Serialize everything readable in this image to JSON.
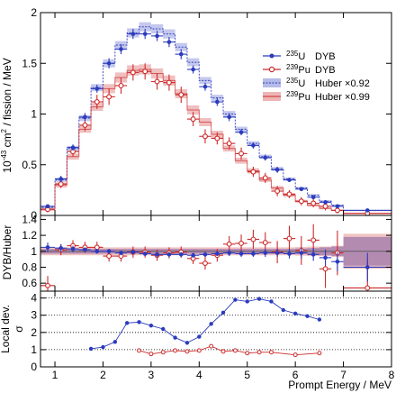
{
  "chart_data": {
    "type": "line",
    "xlabel": "Prompt Energy / MeV",
    "xlim": [
      0.7,
      8.0
    ],
    "x_ticks": [
      "1",
      "2",
      "3",
      "4",
      "5",
      "6",
      "7",
      "8"
    ],
    "bin_edges": [
      0.7,
      1.0,
      1.25,
      1.5,
      1.75,
      2.0,
      2.25,
      2.5,
      2.75,
      3.0,
      3.25,
      3.5,
      3.75,
      4.0,
      4.25,
      4.5,
      4.75,
      5.0,
      5.25,
      5.5,
      5.75,
      6.0,
      6.25,
      6.5,
      6.75,
      7.0,
      8.0
    ],
    "legend": {
      "placement": "right",
      "entries": [
        {
          "sup": "235",
          "nuc": "U",
          "label": "DYB",
          "color": "#2b3bbd",
          "kind": "data-dot"
        },
        {
          "sup": "239",
          "nuc": "Pu",
          "label": "DYB",
          "color": "#cc2a2a",
          "kind": "data-circle"
        },
        {
          "sup": "235",
          "nuc": "U",
          "label": "Huber ×0.92",
          "color": "#2b3bbd",
          "kind": "band"
        },
        {
          "sup": "239",
          "nuc": "Pu",
          "label": "Huber ×0.99",
          "color": "#cc2a2a",
          "kind": "band"
        }
      ]
    },
    "top": {
      "ylabel": "10-43 cm2 / fission / MeV",
      "ylabel_parts": {
        "base": "10",
        "exp": "-43",
        "mid": " cm",
        "exp2": "2",
        "rest": " / fission / MeV"
      },
      "ylim": [
        0,
        2
      ],
      "y_ticks": [
        "0",
        "0.5",
        "1",
        "1.5",
        "2"
      ],
      "series": [
        {
          "name": "235U DYB",
          "color": "#2b3bbd",
          "values": [
            0.09,
            0.36,
            0.67,
            0.97,
            1.25,
            1.5,
            1.64,
            1.79,
            1.79,
            1.77,
            1.71,
            1.59,
            1.44,
            1.27,
            1.12,
            0.97,
            0.82,
            0.69,
            0.57,
            0.45,
            0.35,
            0.26,
            0.18,
            0.13,
            0.09,
            0.05
          ],
          "errors": [
            0.02,
            0.03,
            0.03,
            0.04,
            0.04,
            0.05,
            0.05,
            0.05,
            0.05,
            0.05,
            0.05,
            0.05,
            0.04,
            0.04,
            0.04,
            0.04,
            0.03,
            0.03,
            0.03,
            0.03,
            0.02,
            0.02,
            0.02,
            0.02,
            0.02,
            0.01
          ]
        },
        {
          "name": "239Pu DYB",
          "color": "#cc2a2a",
          "values": [
            0.06,
            0.31,
            0.63,
            0.89,
            1.12,
            1.17,
            1.28,
            1.41,
            1.42,
            1.32,
            1.31,
            1.19,
            0.95,
            0.78,
            0.76,
            0.71,
            0.61,
            0.43,
            0.37,
            0.24,
            0.21,
            0.14,
            0.12,
            0.09,
            0.05,
            0.02
          ],
          "errors": [
            0.03,
            0.04,
            0.05,
            0.06,
            0.07,
            0.08,
            0.08,
            0.08,
            0.08,
            0.08,
            0.08,
            0.08,
            0.07,
            0.07,
            0.06,
            0.06,
            0.06,
            0.05,
            0.05,
            0.05,
            0.04,
            0.04,
            0.04,
            0.04,
            0.03,
            0.02
          ]
        },
        {
          "name": "235U Huber ×0.92",
          "color": "#2b3bbd",
          "values": [
            0.08,
            0.35,
            0.66,
            0.96,
            1.26,
            1.5,
            1.68,
            1.8,
            1.86,
            1.84,
            1.79,
            1.66,
            1.51,
            1.33,
            1.16,
            1.0,
            0.85,
            0.71,
            0.58,
            0.46,
            0.36,
            0.27,
            0.2,
            0.14,
            0.1,
            0.05
          ],
          "band": [
            0.012,
            0.02,
            0.025,
            0.03,
            0.035,
            0.04,
            0.04,
            0.045,
            0.045,
            0.045,
            0.045,
            0.04,
            0.04,
            0.035,
            0.03,
            0.03,
            0.025,
            0.022,
            0.02,
            0.018,
            0.015,
            0.012,
            0.01,
            0.009,
            0.008,
            0.005
          ]
        },
        {
          "name": "239Pu Huber ×0.99",
          "color": "#cc2a2a",
          "values": [
            0.06,
            0.3,
            0.58,
            0.85,
            1.07,
            1.25,
            1.36,
            1.43,
            1.44,
            1.4,
            1.33,
            1.2,
            1.04,
            0.92,
            0.8,
            0.66,
            0.54,
            0.44,
            0.35,
            0.27,
            0.2,
            0.14,
            0.1,
            0.07,
            0.05,
            0.02
          ],
          "band": [
            0.015,
            0.025,
            0.03,
            0.035,
            0.04,
            0.045,
            0.05,
            0.05,
            0.05,
            0.05,
            0.05,
            0.045,
            0.045,
            0.04,
            0.035,
            0.03,
            0.03,
            0.025,
            0.02,
            0.02,
            0.018,
            0.015,
            0.012,
            0.01,
            0.008,
            0.006
          ]
        }
      ]
    },
    "middle": {
      "ylabel": "DYB/Huber",
      "ylim": [
        0.5,
        1.45
      ],
      "y_ticks": [
        "0.6",
        "0.8",
        "1",
        "1.2",
        "1.4"
      ],
      "series": [
        {
          "name": "235U ratio",
          "color": "#2b3bbd",
          "values": [
            1.05,
            1.04,
            1.03,
            1.02,
            1.0,
            1.0,
            0.98,
            0.99,
            0.97,
            0.96,
            0.96,
            0.96,
            0.95,
            0.96,
            0.97,
            0.98,
            0.97,
            0.97,
            0.98,
            0.98,
            0.97,
            0.98,
            0.96,
            0.92,
            0.87,
            0.8
          ],
          "errors": [
            0.06,
            0.05,
            0.04,
            0.03,
            0.03,
            0.03,
            0.03,
            0.03,
            0.03,
            0.03,
            0.03,
            0.03,
            0.03,
            0.03,
            0.03,
            0.04,
            0.04,
            0.04,
            0.05,
            0.05,
            0.06,
            0.07,
            0.08,
            0.1,
            0.12,
            0.18
          ]
        },
        {
          "name": "239Pu ratio",
          "color": "#cc2a2a",
          "values": [
            0.57,
            1.02,
            1.07,
            1.05,
            1.05,
            0.94,
            0.94,
            0.99,
            0.99,
            0.95,
            0.98,
            0.99,
            0.91,
            0.85,
            0.95,
            1.09,
            1.1,
            1.15,
            1.11,
            0.99,
            1.16,
            1.01,
            1.14,
            0.78,
            0.98,
            0.54
          ],
          "errors": [
            0.12,
            0.07,
            0.07,
            0.07,
            0.07,
            0.07,
            0.07,
            0.07,
            0.07,
            0.07,
            0.07,
            0.07,
            0.07,
            0.08,
            0.08,
            0.1,
            0.11,
            0.12,
            0.13,
            0.14,
            0.16,
            0.18,
            0.2,
            0.24,
            0.28,
            0.36
          ]
        }
      ],
      "bands": [
        {
          "name": "235U Huber uncertainty",
          "color": "#2b3bbd",
          "half_width": [
            0.03,
            0.03,
            0.03,
            0.03,
            0.03,
            0.03,
            0.03,
            0.03,
            0.03,
            0.03,
            0.03,
            0.03,
            0.03,
            0.03,
            0.03,
            0.03,
            0.03,
            0.03,
            0.03,
            0.03,
            0.03,
            0.035,
            0.04,
            0.05,
            0.06,
            0.18
          ]
        },
        {
          "name": "239Pu Huber uncertainty",
          "color": "#cc2a2a",
          "half_width": [
            0.05,
            0.05,
            0.05,
            0.05,
            0.05,
            0.05,
            0.05,
            0.05,
            0.05,
            0.05,
            0.05,
            0.05,
            0.05,
            0.05,
            0.05,
            0.05,
            0.05,
            0.05,
            0.05,
            0.05,
            0.05,
            0.055,
            0.06,
            0.06,
            0.07,
            0.22
          ]
        }
      ]
    },
    "bottom": {
      "ylabel_line1": "Local dev.",
      "ylabel_line2": "σ",
      "ylim": [
        0,
        4.4
      ],
      "y_ticks": [
        "0",
        "1",
        "2",
        "3",
        "4"
      ],
      "dotted_lines": [
        1,
        2,
        3,
        4
      ],
      "series": [
        {
          "name": "235U local deviation",
          "color": "#2b3bbd",
          "x": [
            1.75,
            2.0,
            2.25,
            2.5,
            2.75,
            3.0,
            3.25,
            3.5,
            3.75,
            4.0,
            4.25,
            4.5,
            4.75,
            5.0,
            5.25,
            5.5,
            5.75,
            6.0,
            6.25,
            6.5
          ],
          "values": [
            1.05,
            1.15,
            1.45,
            2.55,
            2.6,
            2.4,
            2.2,
            1.7,
            1.4,
            1.75,
            2.5,
            3.15,
            3.9,
            3.8,
            3.95,
            3.8,
            3.3,
            3.1,
            2.95,
            2.75
          ]
        },
        {
          "name": "239Pu local deviation",
          "color": "#cc2a2a",
          "x": [
            2.75,
            3.0,
            3.25,
            3.5,
            3.75,
            4.0,
            4.25,
            4.5,
            4.75,
            5.0,
            5.25,
            5.5,
            6.0,
            6.5
          ],
          "values": [
            0.95,
            0.75,
            0.85,
            0.95,
            0.9,
            0.95,
            1.2,
            0.9,
            0.95,
            0.8,
            0.85,
            0.85,
            0.7,
            0.8
          ]
        }
      ]
    }
  }
}
